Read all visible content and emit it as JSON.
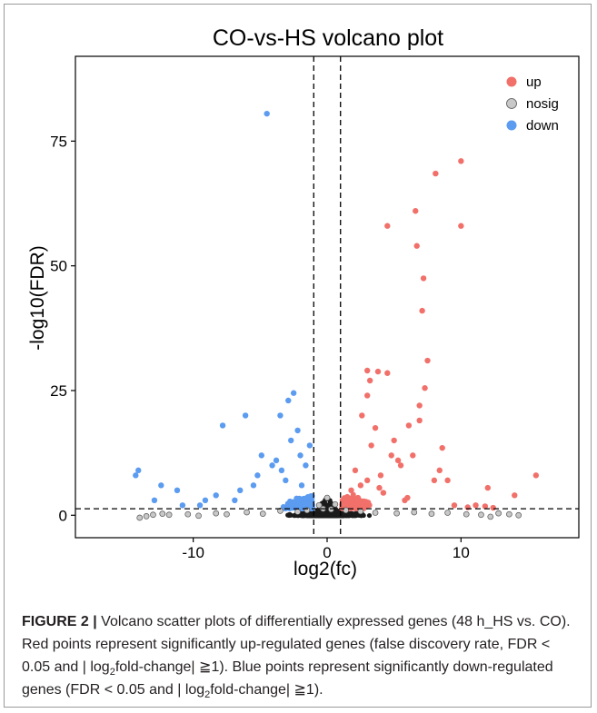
{
  "chart_data": {
    "type": "scatter",
    "title": "CO-vs-HS volcano plot",
    "xlabel": "log2(fc)",
    "ylabel": "-log10(FDR)",
    "xlim": [
      -18.8,
      18.8
    ],
    "ylim": [
      -4.5,
      92
    ],
    "x_ticks": [
      -10,
      0,
      10
    ],
    "x_tick_labels": [
      "-10",
      "0",
      "10"
    ],
    "y_ticks": [
      0,
      25,
      50,
      75
    ],
    "y_tick_labels": [
      "0",
      "25",
      "50",
      "75"
    ],
    "grid": false,
    "legend_position": "top-right",
    "thresholds": {
      "vertical_x": [
        -1,
        1
      ],
      "horizontal_y": 1.3
    },
    "series": [
      {
        "name": "up",
        "color": "#f1706a",
        "x": [
          4.5,
          6.6,
          8.1,
          10.0,
          10.0,
          6.7,
          7.2,
          7.1,
          7.5,
          6.9,
          6.9,
          3.0,
          3.8,
          3.2,
          4.5,
          3.0,
          3.6,
          5.0,
          6.1,
          7.3,
          8.6,
          8.4,
          9.0,
          12.0,
          14.0,
          15.6,
          4.8,
          5.5,
          2.6,
          3.3,
          2.1,
          4.0,
          5.3,
          6.4,
          8.0,
          11.1,
          11.8,
          2.5,
          3.9,
          4.2,
          1.8,
          2.3,
          3.0,
          5.8,
          6.0,
          9.5,
          10.5,
          12.4
        ],
        "y": [
          58,
          61,
          68.5,
          71,
          58,
          54,
          47.5,
          41,
          31,
          22,
          19,
          29,
          28.8,
          27,
          28.5,
          24,
          17.5,
          15,
          18,
          25.5,
          13.5,
          9,
          7,
          5.5,
          4,
          8,
          12,
          10,
          20,
          14,
          9,
          8,
          11,
          12,
          7,
          2,
          1.8,
          6,
          5.5,
          4.5,
          5,
          3.5,
          7,
          3,
          3.5,
          2,
          1.6,
          1.5
        ]
      },
      {
        "name": "nosig",
        "color": "#c8c8c8",
        "x": [
          -14,
          -13.5,
          -13,
          -12.3,
          -11.8,
          -10.4,
          -9.6,
          -8.3,
          -7.5,
          -6.0,
          -4.8,
          -3.5,
          -2.2,
          -1.5,
          -0.6,
          0,
          0.6,
          1.4,
          2.5,
          3.6,
          5.2,
          6.5,
          7.8,
          9.0,
          10.4,
          11.5,
          12.2,
          12.8,
          13.6,
          14.3,
          -0.3,
          0.3
        ],
        "y": [
          -0.5,
          -0.2,
          0.1,
          0.3,
          0.1,
          0.2,
          -0.1,
          0.4,
          0.2,
          0.6,
          0.3,
          0.9,
          0.7,
          1.0,
          2.0,
          3.5,
          2.2,
          1.0,
          0.8,
          0.5,
          0.4,
          0.6,
          0.3,
          0.5,
          0.2,
          0.1,
          -0.3,
          0.4,
          0.2,
          0.0,
          1.3,
          1.2
        ]
      },
      {
        "name": "down",
        "color": "#5b9bf0",
        "x": [
          -4.5,
          -2.5,
          -2.9,
          -3.5,
          -1.3,
          -2.2,
          -3.8,
          -6.1,
          -7.8,
          -14.1,
          -14.3,
          -12.4,
          -11.2,
          -9.5,
          -8.3,
          -6.9,
          -5.5,
          -4.9,
          -3.1,
          -2.0,
          -1.6,
          -10.8,
          -5.2,
          -4.1,
          -2.7,
          -6.5,
          -12.9,
          -9.1,
          -3.4,
          -1.9
        ],
        "y": [
          80.5,
          24.5,
          23,
          20,
          14,
          17,
          11,
          20,
          18,
          9,
          8,
          6,
          5,
          2,
          4,
          3,
          6,
          12,
          7,
          12,
          10,
          2,
          8,
          10,
          15,
          5,
          3,
          3,
          9,
          6
        ]
      }
    ]
  },
  "caption": {
    "label": "FIGURE 2 |",
    "line1_a": "Volcano scatter plots of differentially expressed genes (48 h_HS vs. CO). Red points represent significantly up-regulated genes (false discovery rate, FDR < 0.05 and | log",
    "sub": "2",
    "line1_b": "fold-change| ≧1). Blue points represent significantly down-regulated genes (FDR < 0.05 and | log",
    "line2_b": "fold-change| ≧1)."
  }
}
